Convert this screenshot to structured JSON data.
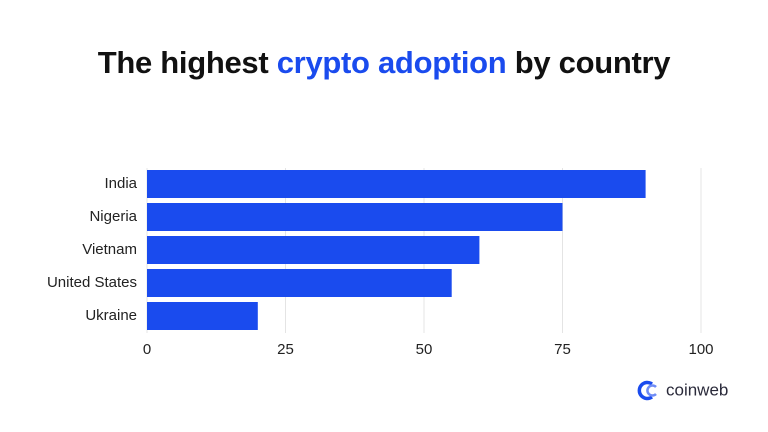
{
  "chart_data": {
    "type": "bar",
    "orientation": "horizontal",
    "title": [
      "The highest",
      "crypto adoption",
      "by country"
    ],
    "title_colors": [
      "#111111",
      "#1a4bee",
      "#111111"
    ],
    "categories": [
      "India",
      "Nigeria",
      "Vietnam",
      "United States",
      "Ukraine"
    ],
    "values": [
      90,
      75,
      60,
      55,
      20
    ],
    "color": "#1a4bee",
    "xlim": [
      0,
      100
    ],
    "xticks": [
      0,
      25,
      50,
      75,
      100
    ],
    "grid": true,
    "brand": "coinweb"
  }
}
